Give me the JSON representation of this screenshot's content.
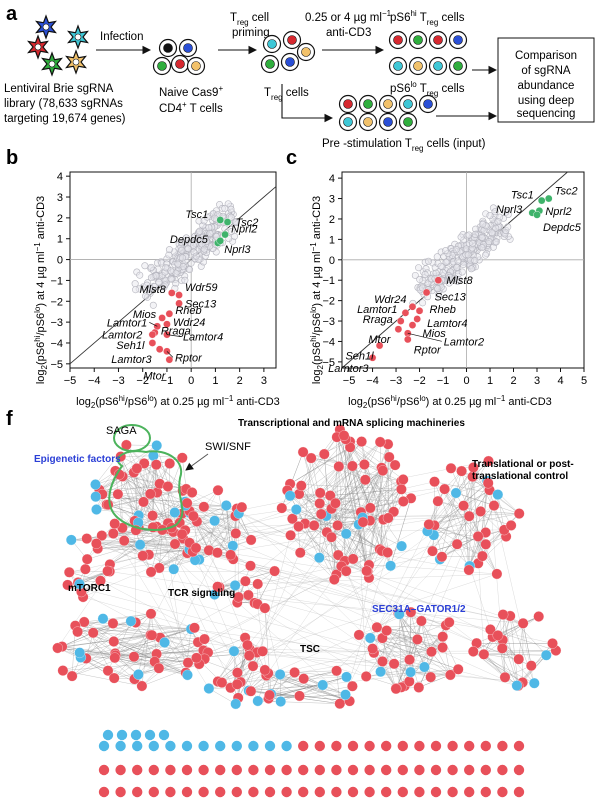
{
  "panel_a": {
    "label": "a",
    "library_line1": "Lentiviral Brie sgRNA",
    "library_line2": "library (78,633 sgRNAs",
    "library_line3": "targeting 19,674 genes)",
    "infection": "Infection",
    "naive_line1": "Naive Cas9",
    "naive_line1_sup": "+",
    "naive_line2": "CD4",
    "naive_line2_sup": "+",
    "naive_line2_tail": " T cells",
    "priming_T": "T",
    "priming_sub": "reg",
    "priming_tail": " cell",
    "priming_line2": "priming",
    "treg_T": "T",
    "treg_sub": "reg",
    "treg_tail": " cells",
    "dose_line1": "0.25 or 4 µg ml",
    "dose_sup": "−1",
    "dose_line2": "anti-CD3",
    "hi_pre": "pS6",
    "hi_sup": "hi",
    "hi_T": " T",
    "hi_sub": "reg",
    "hi_tail": " cells",
    "lo_pre": "pS6",
    "lo_sup": "lo",
    "lo_T": " T",
    "lo_sub": "reg",
    "lo_tail": " cells",
    "pre_pre": "Pre -stimulation T",
    "pre_sub": "reg",
    "pre_tail": " cells (input)",
    "compare_line1": "Comparison",
    "compare_line2": "of sgRNA",
    "compare_line3": "abundance",
    "compare_line4": "using deep",
    "compare_line5": "sequencing"
  },
  "ylabel": {
    "p1": "log",
    "p2": "2",
    "p3": "(pS6",
    "p4": "hi",
    "p5": "/pS6",
    "p6": "lo",
    "p7": ") at 4 µg ml",
    "p8": "−1",
    "p9": " anti-CD3"
  },
  "xlabel": {
    "p1": "log",
    "p2": "2",
    "p3": "(pS6",
    "p4": "hi",
    "p5": "/pS6",
    "p6": "lo",
    "p7": ") at 0.25 µg ml",
    "p8": "−1",
    "p9": " anti-CD3"
  },
  "chart_data": [
    {
      "panel": "b",
      "type": "scatter",
      "xlim": [
        -5,
        3.5
      ],
      "ylim": [
        -5.2,
        4.2
      ],
      "xticks": [
        -5,
        -4,
        -3,
        -2,
        -1,
        0,
        1,
        2,
        3
      ],
      "yticks": [
        -5,
        -4,
        -3,
        -2,
        -1,
        0,
        1,
        2,
        3,
        4
      ],
      "tick_labels_x": [
        "−5",
        "−4",
        "−3",
        "−2",
        "−1",
        "0",
        "1",
        "2",
        "3"
      ],
      "tick_labels_y": [
        "−5",
        "−4",
        "−3",
        "−2",
        "−1",
        "0",
        "1",
        "2",
        "3",
        "4"
      ],
      "diagonal": true,
      "green": [
        {
          "gene": "Tsc1",
          "x": 1.2,
          "y": 1.9
        },
        {
          "gene": "Tsc2",
          "x": 1.5,
          "y": 1.8
        },
        {
          "gene": "Nprl2",
          "x": 1.4,
          "y": 1.2
        },
        {
          "gene": "Depdc5",
          "x": 1.1,
          "y": 0.8
        },
        {
          "gene": "Nprl3",
          "x": 1.2,
          "y": 0.9
        }
      ],
      "red": [
        {
          "gene": "Mlst8",
          "x": -0.8,
          "y": -1.6
        },
        {
          "gene": "Wdr59",
          "x": -0.5,
          "y": -1.7
        },
        {
          "gene": "Sec13",
          "x": -0.5,
          "y": -2.1
        },
        {
          "gene": "Mios",
          "x": -1.2,
          "y": -2.8
        },
        {
          "gene": "Rheb",
          "x": -0.9,
          "y": -2.6
        },
        {
          "gene": "Lamtor1",
          "x": -1.4,
          "y": -3.2
        },
        {
          "gene": "Wdr24",
          "x": -1.0,
          "y": -3.1
        },
        {
          "gene": "Rraga",
          "x": -1.5,
          "y": -3.5
        },
        {
          "gene": "Lamtor2",
          "x": -1.6,
          "y": -3.6
        },
        {
          "gene": "Lamtor4",
          "x": -1.0,
          "y": -3.6
        },
        {
          "gene": "Seh1l",
          "x": -1.6,
          "y": -4.0
        },
        {
          "gene": "Lamtor3",
          "x": -1.3,
          "y": -4.3
        },
        {
          "gene": "Rptor",
          "x": -1.0,
          "y": -4.4
        },
        {
          "gene": "Mtor",
          "x": -0.9,
          "y": -4.8
        }
      ]
    },
    {
      "panel": "c",
      "type": "scatter",
      "xlim": [
        -5.3,
        5
      ],
      "ylim": [
        -5.3,
        4.3
      ],
      "xticks": [
        -5,
        -4,
        -3,
        -2,
        -1,
        0,
        1,
        2,
        3,
        4,
        5
      ],
      "yticks": [
        -5,
        -4,
        -3,
        -2,
        -1,
        0,
        1,
        2,
        3,
        4
      ],
      "tick_labels_x": [
        "−5",
        "−4",
        "−3",
        "−2",
        "−1",
        "0",
        "1",
        "2",
        "3",
        "4",
        "5"
      ],
      "tick_labels_y": [
        "−5",
        "−4",
        "−3",
        "−2",
        "−1",
        "0",
        "1",
        "2",
        "3",
        "4"
      ],
      "diagonal": true,
      "green": [
        {
          "gene": "Tsc1",
          "x": 3.2,
          "y": 2.9
        },
        {
          "gene": "Tsc2",
          "x": 3.5,
          "y": 3.0
        },
        {
          "gene": "Nprl3",
          "x": 2.8,
          "y": 2.3
        },
        {
          "gene": "Nprl2",
          "x": 3.1,
          "y": 2.4
        },
        {
          "gene": "Depdc5",
          "x": 3.0,
          "y": 2.2
        }
      ],
      "red": [
        {
          "gene": "Mlst8",
          "x": -1.2,
          "y": -1.0
        },
        {
          "gene": "Sec13",
          "x": -1.7,
          "y": -1.6
        },
        {
          "gene": "Wdr24",
          "x": -2.3,
          "y": -2.3
        },
        {
          "gene": "Rheb",
          "x": -2.0,
          "y": -2.5
        },
        {
          "gene": "Lamtor1",
          "x": -2.6,
          "y": -2.6
        },
        {
          "gene": "Lamtor4",
          "x": -2.1,
          "y": -2.9
        },
        {
          "gene": "Rraga",
          "x": -2.8,
          "y": -3.0
        },
        {
          "gene": "Mios",
          "x": -2.3,
          "y": -3.2
        },
        {
          "gene": "Mtor",
          "x": -2.9,
          "y": -3.4
        },
        {
          "gene": "Lamtor2",
          "x": -2.5,
          "y": -3.6
        },
        {
          "gene": "Rptor",
          "x": -2.5,
          "y": -3.9
        },
        {
          "gene": "Seh1l",
          "x": -3.7,
          "y": -4.2
        },
        {
          "gene": "Lamtor3",
          "x": -4.0,
          "y": -4.8
        }
      ]
    }
  ],
  "panel_f": {
    "label": "f",
    "saga": "SAGA",
    "swisnf": "SWI/SNF",
    "epigenetic": "Epigenetic factors",
    "transcription": "Transcriptional and mRNA splicing machineries",
    "transl_line1": "Translational or post-",
    "transl_line2": "translational control",
    "mtorc1": "mTORC1",
    "tcr": "TCR signaling",
    "gator": "SEC31A–GATOR1/2",
    "tsc": "TSC"
  },
  "colors": {
    "red_node": "#e8505a",
    "blue_node": "#4fb8e6",
    "green_point": "#3fb36b",
    "grey_point": "#b5b5be",
    "epigenetic_text": "#2b3fd6",
    "gator_text": "#2b3fd6",
    "saga_outline": "#4cb35c"
  }
}
